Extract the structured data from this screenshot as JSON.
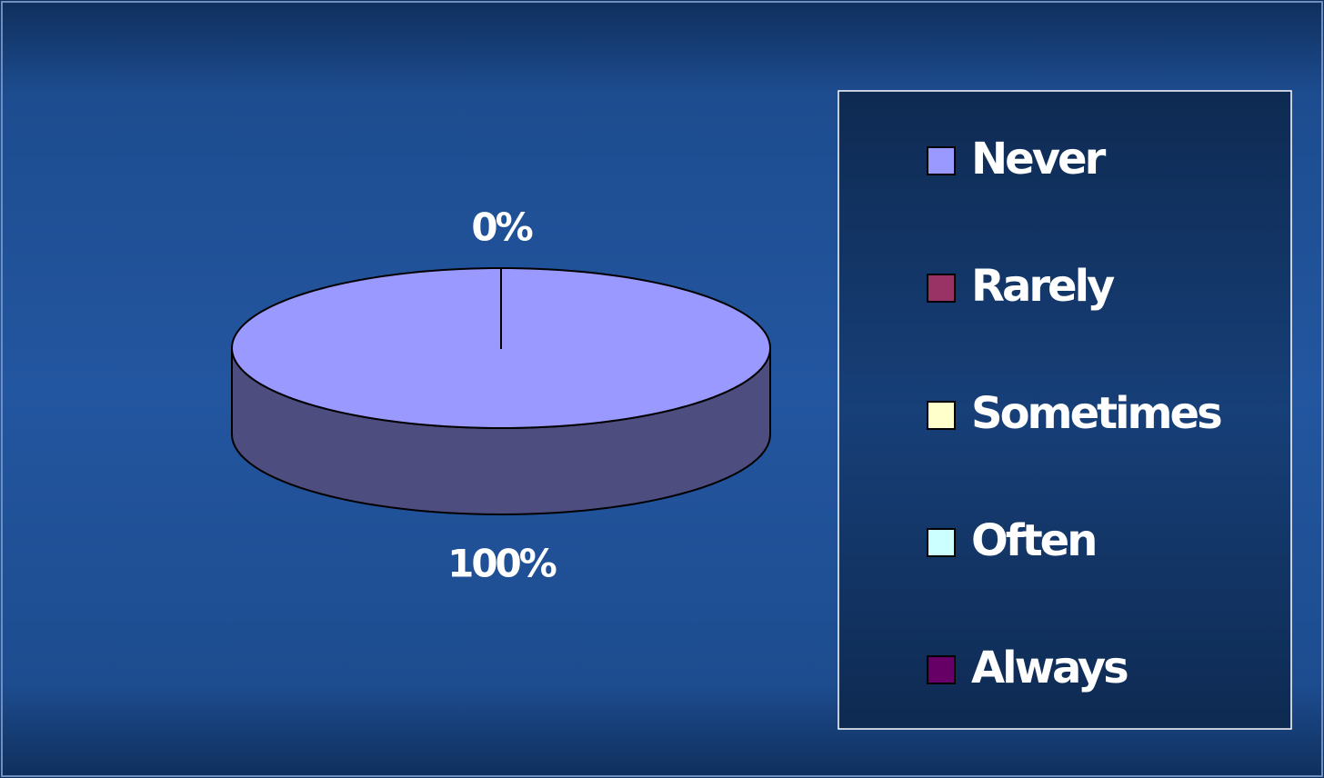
{
  "chart_data": {
    "type": "pie3d",
    "categories": [
      "Never",
      "Rarely",
      "Sometimes",
      "Often",
      "Always"
    ],
    "values": [
      100,
      0,
      0,
      0,
      0
    ],
    "value_labels": [
      "100%",
      "0%",
      null,
      null,
      null
    ],
    "colors": [
      "#9999ff",
      "#993366",
      "#ffffcc",
      "#ccffff",
      "#660066"
    ],
    "legend": "right"
  }
}
